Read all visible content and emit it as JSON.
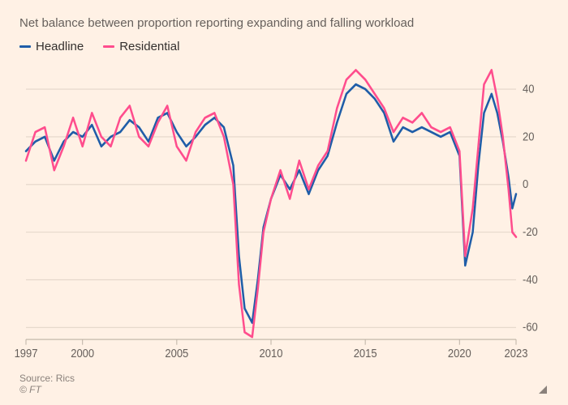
{
  "subtitle": "Net balance between proportion reporting expanding and falling workload",
  "legend": [
    {
      "label": "Headline",
      "color": "#1f5da8"
    },
    {
      "label": "Residential",
      "color": "#ff4d8d"
    }
  ],
  "source": "Source: Rics",
  "copyright": "© FT",
  "chart": {
    "type": "line",
    "background_color": "#fff1e5",
    "grid_color": "#e3d6c9",
    "baseline_color": "#bcb2a5",
    "line_width": 2.5,
    "x": {
      "min": 1997,
      "max": 2023,
      "ticks": [
        1997,
        2000,
        2005,
        2010,
        2015,
        2020,
        2023
      ]
    },
    "y": {
      "min": -65,
      "max": 50,
      "ticks": [
        -60,
        -40,
        -20,
        0,
        20,
        40
      ]
    },
    "series": [
      {
        "name": "Headline",
        "color": "#1f5da8",
        "points": [
          [
            1997.0,
            14
          ],
          [
            1997.5,
            18
          ],
          [
            1998.0,
            20
          ],
          [
            1998.5,
            10
          ],
          [
            1999.0,
            18
          ],
          [
            1999.5,
            22
          ],
          [
            2000.0,
            20
          ],
          [
            2000.5,
            25
          ],
          [
            2001.0,
            16
          ],
          [
            2001.5,
            20
          ],
          [
            2002.0,
            22
          ],
          [
            2002.5,
            27
          ],
          [
            2003.0,
            24
          ],
          [
            2003.5,
            18
          ],
          [
            2004.0,
            28
          ],
          [
            2004.5,
            30
          ],
          [
            2005.0,
            22
          ],
          [
            2005.5,
            16
          ],
          [
            2006.0,
            20
          ],
          [
            2006.5,
            25
          ],
          [
            2007.0,
            28
          ],
          [
            2007.5,
            24
          ],
          [
            2008.0,
            8
          ],
          [
            2008.3,
            -30
          ],
          [
            2008.6,
            -52
          ],
          [
            2009.0,
            -58
          ],
          [
            2009.3,
            -40
          ],
          [
            2009.6,
            -18
          ],
          [
            2010.0,
            -6
          ],
          [
            2010.5,
            4
          ],
          [
            2011.0,
            -2
          ],
          [
            2011.5,
            6
          ],
          [
            2012.0,
            -4
          ],
          [
            2012.5,
            6
          ],
          [
            2013.0,
            12
          ],
          [
            2013.5,
            26
          ],
          [
            2014.0,
            38
          ],
          [
            2014.5,
            42
          ],
          [
            2015.0,
            40
          ],
          [
            2015.5,
            36
          ],
          [
            2016.0,
            30
          ],
          [
            2016.5,
            18
          ],
          [
            2017.0,
            24
          ],
          [
            2017.5,
            22
          ],
          [
            2018.0,
            24
          ],
          [
            2018.5,
            22
          ],
          [
            2019.0,
            20
          ],
          [
            2019.5,
            22
          ],
          [
            2020.0,
            12
          ],
          [
            2020.3,
            -34
          ],
          [
            2020.7,
            -20
          ],
          [
            2021.0,
            8
          ],
          [
            2021.3,
            30
          ],
          [
            2021.7,
            38
          ],
          [
            2022.0,
            30
          ],
          [
            2022.3,
            18
          ],
          [
            2022.6,
            3
          ],
          [
            2022.8,
            -10
          ],
          [
            2023.0,
            -4
          ]
        ]
      },
      {
        "name": "Residential",
        "color": "#ff4d8d",
        "points": [
          [
            1997.0,
            10
          ],
          [
            1997.5,
            22
          ],
          [
            1998.0,
            24
          ],
          [
            1998.5,
            6
          ],
          [
            1999.0,
            16
          ],
          [
            1999.5,
            28
          ],
          [
            2000.0,
            16
          ],
          [
            2000.5,
            30
          ],
          [
            2001.0,
            20
          ],
          [
            2001.5,
            16
          ],
          [
            2002.0,
            28
          ],
          [
            2002.5,
            33
          ],
          [
            2003.0,
            20
          ],
          [
            2003.5,
            16
          ],
          [
            2004.0,
            26
          ],
          [
            2004.5,
            33
          ],
          [
            2005.0,
            16
          ],
          [
            2005.5,
            10
          ],
          [
            2006.0,
            22
          ],
          [
            2006.5,
            28
          ],
          [
            2007.0,
            30
          ],
          [
            2007.5,
            20
          ],
          [
            2008.0,
            0
          ],
          [
            2008.3,
            -42
          ],
          [
            2008.6,
            -62
          ],
          [
            2009.0,
            -64
          ],
          [
            2009.3,
            -44
          ],
          [
            2009.6,
            -20
          ],
          [
            2010.0,
            -6
          ],
          [
            2010.5,
            6
          ],
          [
            2011.0,
            -6
          ],
          [
            2011.5,
            10
          ],
          [
            2012.0,
            -2
          ],
          [
            2012.5,
            8
          ],
          [
            2013.0,
            14
          ],
          [
            2013.5,
            32
          ],
          [
            2014.0,
            44
          ],
          [
            2014.5,
            48
          ],
          [
            2015.0,
            44
          ],
          [
            2015.5,
            38
          ],
          [
            2016.0,
            32
          ],
          [
            2016.5,
            22
          ],
          [
            2017.0,
            28
          ],
          [
            2017.5,
            26
          ],
          [
            2018.0,
            30
          ],
          [
            2018.5,
            24
          ],
          [
            2019.0,
            22
          ],
          [
            2019.5,
            24
          ],
          [
            2020.0,
            14
          ],
          [
            2020.3,
            -30
          ],
          [
            2020.7,
            -10
          ],
          [
            2021.0,
            16
          ],
          [
            2021.3,
            42
          ],
          [
            2021.7,
            48
          ],
          [
            2022.0,
            36
          ],
          [
            2022.3,
            20
          ],
          [
            2022.6,
            -2
          ],
          [
            2022.8,
            -20
          ],
          [
            2023.0,
            -22
          ]
        ]
      }
    ]
  }
}
